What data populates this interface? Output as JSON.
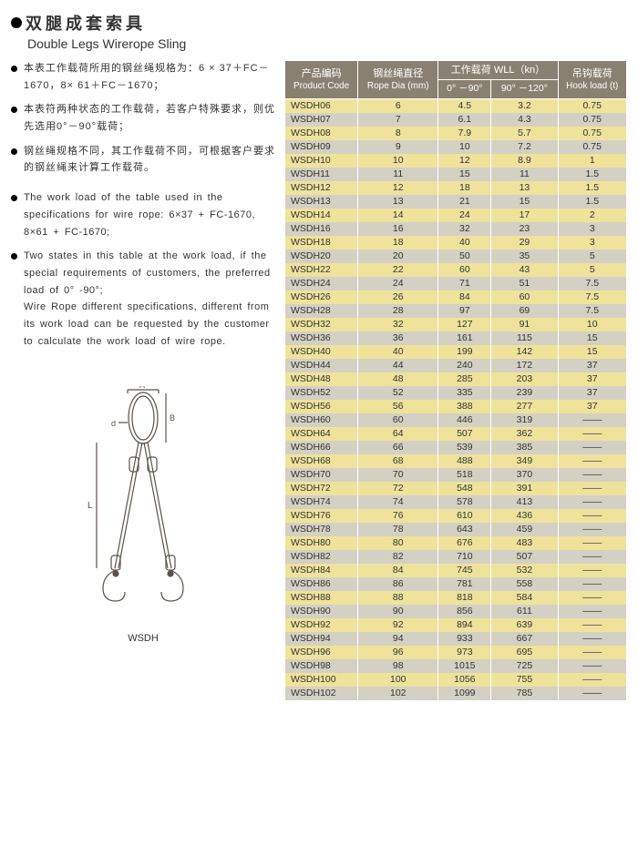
{
  "title_cn": "双腿成套索具",
  "title_en": "Double Legs Wirerope Sling",
  "notes_cn": [
    "本表工作载荷所用的钢丝绳规格为：6 × 37＋FC－1670，8× 61＋FC－1670；",
    "本表符两种状态的工作载荷，若客户特殊要求，则优先选用0°－90°载荷；",
    "钢丝绳规格不同，其工作载荷不同，可根据客户要求的钢丝绳来计算工作载荷。"
  ],
  "notes_en": [
    "The work load of the table used in the specifications for wire rope: 6×37 + FC-1670, 8×61 + FC-1670;",
    "Two states in this table at the work load, if the special requirements of customers, the preferred load of 0° -90°;\nWire Rope different specifications, different from its work load can be requested by the customer to calculate the work load of wire rope."
  ],
  "diagram_label": "WSDH",
  "table": {
    "header": {
      "code_cn": "产品编码",
      "code_en": "Product Code",
      "dia_cn": "钢丝绳直径",
      "dia_en": "Rope Dia (mm)",
      "wll_cn": "工作载荷  WLL（kn）",
      "wll_a": "0° －90°",
      "wll_b": "90° －120°",
      "hook_cn": "吊钩载荷",
      "hook_en": "Hook load (t)"
    },
    "row_colors": {
      "a": "#efe39c",
      "b": "#d4d0c3"
    },
    "header_bg": "#8a8071",
    "rows": [
      [
        "WSDH06",
        "6",
        "4.5",
        "3.2",
        "0.75"
      ],
      [
        "WSDH07",
        "7",
        "6.1",
        "4.3",
        "0.75"
      ],
      [
        "WSDH08",
        "8",
        "7.9",
        "5.7",
        "0.75"
      ],
      [
        "WSDH09",
        "9",
        "10",
        "7.2",
        "0.75"
      ],
      [
        "WSDH10",
        "10",
        "12",
        "8.9",
        "1"
      ],
      [
        "WSDH11",
        "11",
        "15",
        "11",
        "1.5"
      ],
      [
        "WSDH12",
        "12",
        "18",
        "13",
        "1.5"
      ],
      [
        "WSDH13",
        "13",
        "21",
        "15",
        "1.5"
      ],
      [
        "WSDH14",
        "14",
        "24",
        "17",
        "2"
      ],
      [
        "WSDH16",
        "16",
        "32",
        "23",
        "3"
      ],
      [
        "WSDH18",
        "18",
        "40",
        "29",
        "3"
      ],
      [
        "WSDH20",
        "20",
        "50",
        "35",
        "5"
      ],
      [
        "WSDH22",
        "22",
        "60",
        "43",
        "5"
      ],
      [
        "WSDH24",
        "24",
        "71",
        "51",
        "7.5"
      ],
      [
        "WSDH26",
        "26",
        "84",
        "60",
        "7.5"
      ],
      [
        "WSDH28",
        "28",
        "97",
        "69",
        "7.5"
      ],
      [
        "WSDH32",
        "32",
        "127",
        "91",
        "10"
      ],
      [
        "WSDH36",
        "36",
        "161",
        "115",
        "15"
      ],
      [
        "WSDH40",
        "40",
        "199",
        "142",
        "15"
      ],
      [
        "WSDH44",
        "44",
        "240",
        "172",
        "37"
      ],
      [
        "WSDH48",
        "48",
        "285",
        "203",
        "37"
      ],
      [
        "WSDH52",
        "52",
        "335",
        "239",
        "37"
      ],
      [
        "WSDH56",
        "56",
        "388",
        "277",
        "37"
      ],
      [
        "WSDH60",
        "60",
        "446",
        "319",
        "——"
      ],
      [
        "WSDH64",
        "64",
        "507",
        "362",
        "——"
      ],
      [
        "WSDH66",
        "66",
        "539",
        "385",
        "——"
      ],
      [
        "WSDH68",
        "68",
        "488",
        "349",
        "——"
      ],
      [
        "WSDH70",
        "70",
        "518",
        "370",
        "——"
      ],
      [
        "WSDH72",
        "72",
        "548",
        "391",
        "——"
      ],
      [
        "WSDH74",
        "74",
        "578",
        "413",
        "——"
      ],
      [
        "WSDH76",
        "76",
        "610",
        "436",
        "——"
      ],
      [
        "WSDH78",
        "78",
        "643",
        "459",
        "——"
      ],
      [
        "WSDH80",
        "80",
        "676",
        "483",
        "——"
      ],
      [
        "WSDH82",
        "82",
        "710",
        "507",
        "——"
      ],
      [
        "WSDH84",
        "84",
        "745",
        "532",
        "——"
      ],
      [
        "WSDH86",
        "86",
        "781",
        "558",
        "——"
      ],
      [
        "WSDH88",
        "88",
        "818",
        "584",
        "——"
      ],
      [
        "WSDH90",
        "90",
        "856",
        "611",
        "——"
      ],
      [
        "WSDH92",
        "92",
        "894",
        "639",
        "——"
      ],
      [
        "WSDH94",
        "94",
        "933",
        "667",
        "——"
      ],
      [
        "WSDH96",
        "96",
        "973",
        "695",
        "——"
      ],
      [
        "WSDH98",
        "98",
        "1015",
        "725",
        "——"
      ],
      [
        "WSDH100",
        "100",
        "1056",
        "755",
        "——"
      ],
      [
        "WSDH102",
        "102",
        "1099",
        "785",
        "——"
      ]
    ]
  }
}
